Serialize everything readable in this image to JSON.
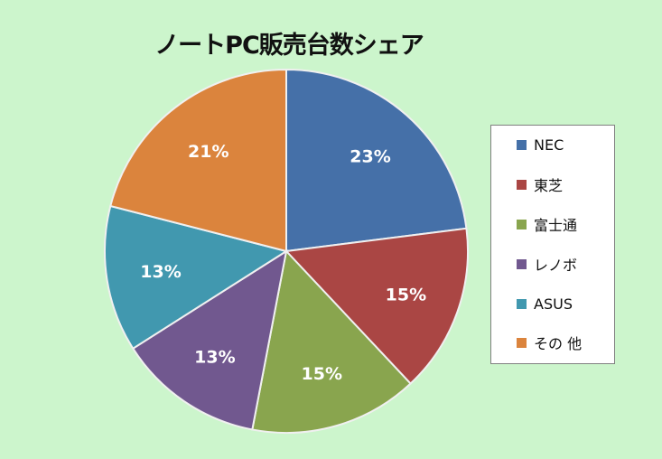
{
  "chart_data": {
    "type": "pie",
    "title": "ノートPC販売台数シェア",
    "categories": [
      "NEC",
      "東芝",
      "富士通",
      "レノボ",
      "ASUS",
      "その 他"
    ],
    "values": [
      23,
      15,
      15,
      13,
      13,
      21
    ],
    "labels": [
      "23%",
      "15%",
      "15%",
      "13%",
      "13%",
      "21%"
    ],
    "colors": [
      "#4570a8",
      "#aa4644",
      "#89a54e",
      "#71588f",
      "#4198af",
      "#db843d"
    ],
    "legend_position": "right"
  }
}
